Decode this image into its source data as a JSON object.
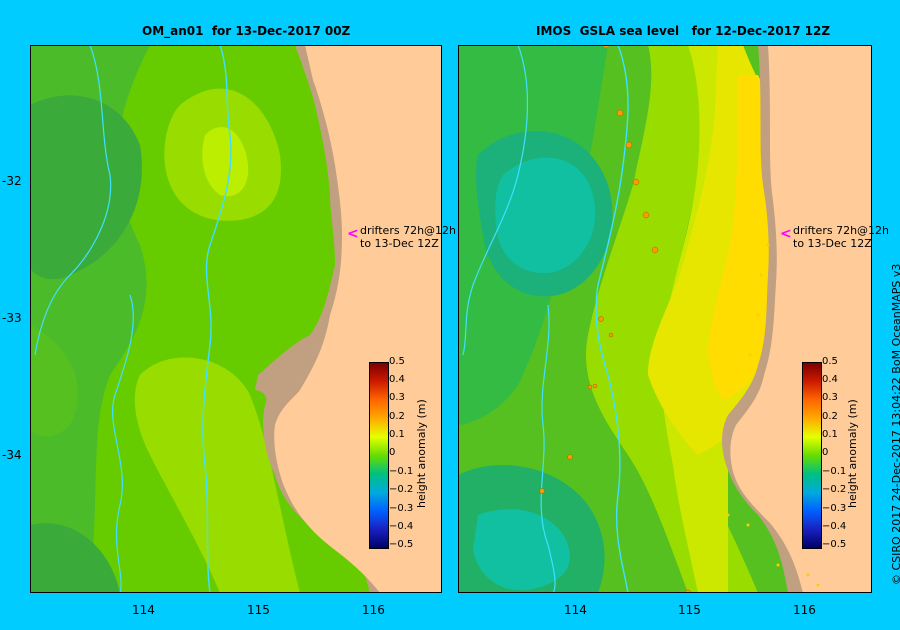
{
  "panels": [
    {
      "title": "OM_an01  for 13-Dec-2017 00Z",
      "drifter_label_1": "drifters 72h@12h",
      "drifter_label_2": "to 13-Dec 12Z"
    },
    {
      "title": "IMOS  GSLA sea level   for 12-Dec-2017 12Z",
      "drifter_label_1": "drifters 72h@12h",
      "drifter_label_2": "to 13-Dec 12Z"
    }
  ],
  "lat_ticks": [
    "-32",
    "-33",
    "-34"
  ],
  "lon_ticks": [
    "114",
    "115",
    "116"
  ],
  "colorbar": {
    "title": "height anomaly (m)",
    "ticks": [
      "0.5",
      "0.4",
      "0.3",
      "0.2",
      "0.1",
      "0",
      "−0.1",
      "−0.2",
      "−0.3",
      "−0.4",
      "−0.5"
    ]
  },
  "credit": "© CSIRO 2017   24-Dec-2017 13:04:22 BoM OceanMAPS v3",
  "colors": {
    "background": "#00ccff",
    "land": "#ffcc99",
    "shelf": "#c0a080",
    "drifter_arrow": "#ff00ff",
    "isobath": "#40e0ff"
  }
}
